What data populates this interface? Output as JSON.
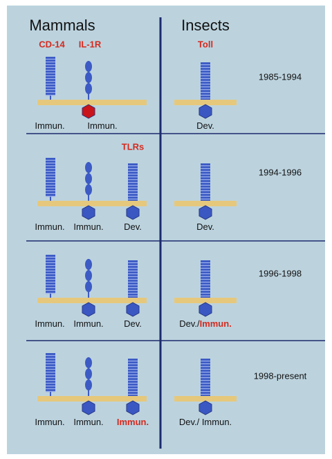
{
  "header": {
    "left": "Mammals",
    "right": "Insects"
  },
  "receptors": {
    "cd14": "CD-14",
    "il1r": "IL-1R",
    "toll": "Toll",
    "tlrs": "TLRs"
  },
  "rows": [
    {
      "period": "1985-1994",
      "mammals": [
        [
          {
            "text": "Immun.",
            "color": "#111"
          }
        ],
        [
          {
            "text": "Immun.",
            "color": "#111"
          }
        ]
      ],
      "insects": [
        {
          "text": "Dev.",
          "color": "#111"
        }
      ]
    },
    {
      "period": "1994-1996",
      "mammals": [
        [
          {
            "text": "Immun.",
            "color": "#111"
          }
        ],
        [
          {
            "text": "Immun.",
            "color": "#111"
          }
        ],
        [
          {
            "text": "Dev.",
            "color": "#111"
          }
        ]
      ],
      "insects": [
        {
          "text": "Dev.",
          "color": "#111"
        }
      ]
    },
    {
      "period": "1996-1998",
      "mammals": [
        [
          {
            "text": "Immun.",
            "color": "#111"
          }
        ],
        [
          {
            "text": "Immun.",
            "color": "#111"
          }
        ],
        [
          {
            "text": "Dev.",
            "color": "#111"
          }
        ]
      ],
      "insects": [
        {
          "text": "Dev./",
          "color": "#111"
        },
        {
          "text": "Immun.",
          "color": "#d42a1e"
        }
      ]
    },
    {
      "period": "1998-present",
      "mammals": [
        [
          {
            "text": "Immun.",
            "color": "#111"
          }
        ],
        [
          {
            "text": "Immun.",
            "color": "#111"
          }
        ],
        [
          {
            "text": "Immun.",
            "color": "#d42a1e"
          }
        ]
      ],
      "insects": [
        {
          "text": "Dev./ Immun.",
          "color": "#111"
        }
      ]
    }
  ]
}
